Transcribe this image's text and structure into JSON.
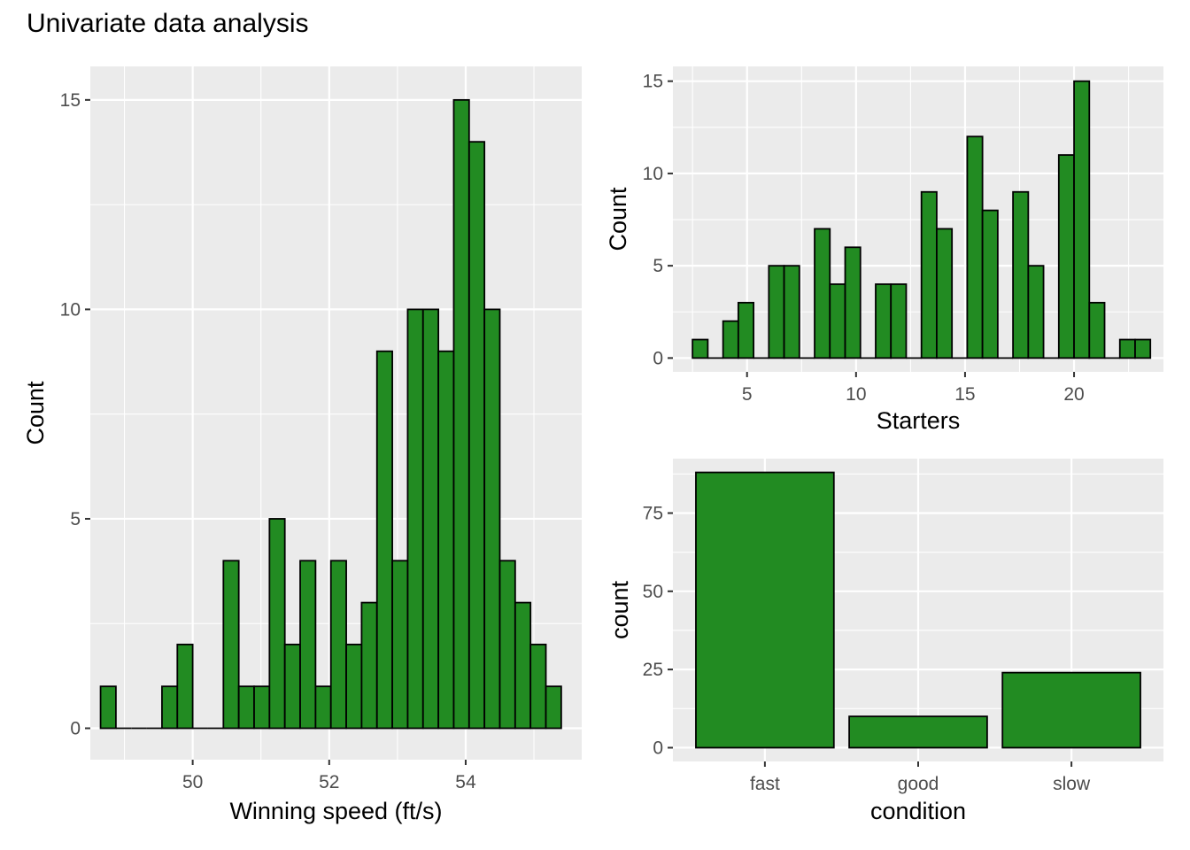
{
  "page_title": "Univariate data analysis",
  "chart_data": [
    {
      "type": "bar",
      "subtype": "histogram",
      "xlabel": "Winning speed (ft/s)",
      "ylabel": "Count",
      "xlim": [
        48.5,
        55.7
      ],
      "ylim": [
        -0.75,
        15.8
      ],
      "xticks": [
        50,
        52,
        54
      ],
      "yticks": [
        0,
        5,
        10,
        15
      ],
      "bin_width": 0.225,
      "bin_start": 48.65,
      "values": [
        1,
        0,
        0,
        0,
        1,
        2,
        0,
        0,
        4,
        1,
        1,
        5,
        2,
        4,
        1,
        4,
        2,
        3,
        9,
        4,
        10,
        10,
        9,
        15,
        14,
        10,
        4,
        3,
        2,
        1
      ],
      "fill_color": "#228B22",
      "edge_color": "#000000",
      "panel_background": "#EBEBEB",
      "grid": true
    },
    {
      "type": "bar",
      "subtype": "histogram",
      "xlabel": "Starters",
      "ylabel": "Count",
      "xlim": [
        1.6,
        24.1
      ],
      "ylim": [
        -0.75,
        15.8
      ],
      "xticks": [
        5,
        10,
        15,
        20
      ],
      "yticks": [
        0,
        5,
        10,
        15
      ],
      "bin_width": 0.7,
      "bin_start": 2.5,
      "values": [
        1,
        0,
        2,
        3,
        0,
        5,
        5,
        0,
        7,
        4,
        6,
        0,
        4,
        4,
        0,
        9,
        7,
        0,
        12,
        8,
        0,
        9,
        5,
        0,
        11,
        15,
        3,
        0,
        1,
        1
      ],
      "fill_color": "#228B22",
      "edge_color": "#000000",
      "panel_background": "#EBEBEB",
      "grid": true
    },
    {
      "type": "bar",
      "xlabel": "condition",
      "ylabel": "count",
      "categories": [
        "fast",
        "good",
        "slow"
      ],
      "values": [
        88,
        10,
        24
      ],
      "ylim": [
        -4.4,
        92.4
      ],
      "yticks": [
        0,
        25,
        50,
        75
      ],
      "fill_color": "#228B22",
      "edge_color": "#000000",
      "panel_background": "#EBEBEB",
      "grid": true
    }
  ]
}
